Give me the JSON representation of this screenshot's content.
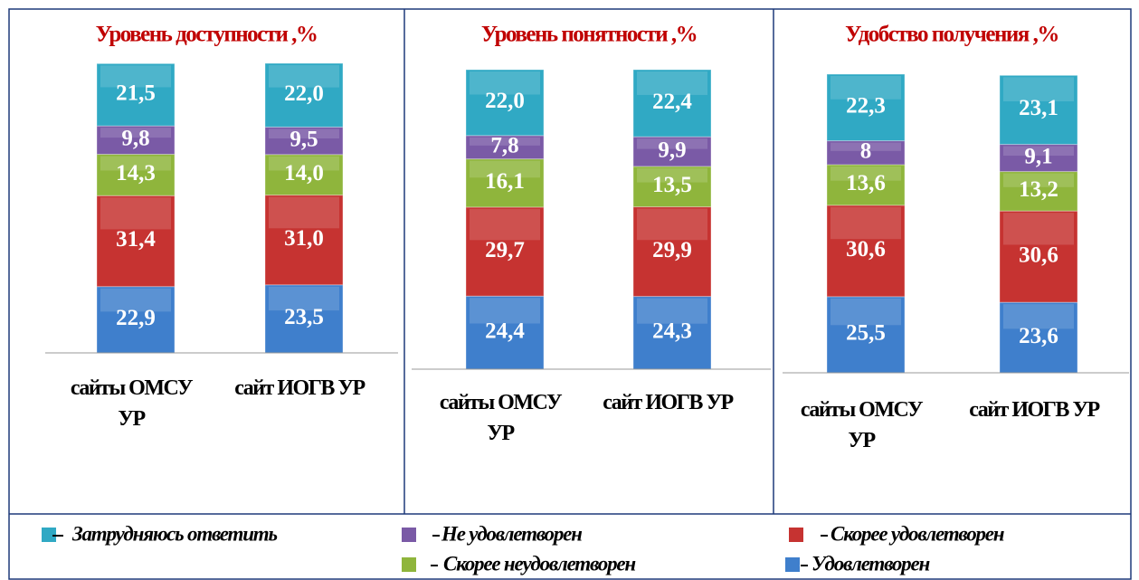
{
  "chart_data": [
    {
      "type": "stacked_bar",
      "title": "Уровень доступности ,%",
      "categories": [
        "сайты ОМСУ УР",
        "сайт ИОГВ УР"
      ],
      "ylim": [
        0,
        100
      ],
      "series": [
        {
          "name": "Удовлетворен",
          "color": "#3f7fcc",
          "values": [
            22.9,
            23.5
          ],
          "value_labels": [
            "22,9",
            "23,5"
          ]
        },
        {
          "name": "Скорее удовлетворен",
          "color": "#c63331",
          "values": [
            31.4,
            31.0
          ],
          "value_labels": [
            "31,4",
            "31,0"
          ]
        },
        {
          "name": "Скорее неудовлетворен",
          "color": "#8fb53c",
          "values": [
            14.3,
            14.0
          ],
          "value_labels": [
            "14,3",
            "14,0"
          ]
        },
        {
          "name": "Не удовлетворен",
          "color": "#7a5aa6",
          "values": [
            9.8,
            9.5
          ],
          "value_labels": [
            "9,8",
            "9,5"
          ]
        },
        {
          "name": "Затрудняюсь ответить",
          "color": "#30a9c4",
          "values": [
            21.5,
            22.0
          ],
          "value_labels": [
            "21,5",
            "22,0"
          ]
        }
      ]
    },
    {
      "type": "stacked_bar",
      "title": "Уровень понятности ,%",
      "categories": [
        "сайты ОМСУ УР",
        "сайт ИОГВ УР"
      ],
      "ylim": [
        0,
        100
      ],
      "series": [
        {
          "name": "Удовлетворен",
          "color": "#3f7fcc",
          "values": [
            24.4,
            24.3
          ],
          "value_labels": [
            "24,4",
            "24,3"
          ]
        },
        {
          "name": "Скорее удовлетворен",
          "color": "#c63331",
          "values": [
            29.7,
            29.9
          ],
          "value_labels": [
            "29,7",
            "29,9"
          ]
        },
        {
          "name": "Скорее неудовлетворен",
          "color": "#8fb53c",
          "values": [
            16.1,
            13.5
          ],
          "value_labels": [
            "16,1",
            "13,5"
          ]
        },
        {
          "name": "Не удовлетворен",
          "color": "#7a5aa6",
          "values": [
            7.8,
            9.9
          ],
          "value_labels": [
            "7,8",
            "9,9"
          ]
        },
        {
          "name": "Затрудняюсь ответить",
          "color": "#30a9c4",
          "values": [
            22.0,
            22.4
          ],
          "value_labels": [
            "22,0",
            "22,4"
          ]
        }
      ]
    },
    {
      "type": "stacked_bar",
      "title": "Удобство получения ,%",
      "categories": [
        "сайты ОМСУ УР",
        "сайт ИОГВ УР"
      ],
      "ylim": [
        0,
        100
      ],
      "series": [
        {
          "name": "Удовлетворен",
          "color": "#3f7fcc",
          "values": [
            25.5,
            23.6
          ],
          "value_labels": [
            "25,5",
            "23,6"
          ]
        },
        {
          "name": "Скорее удовлетворен",
          "color": "#c63331",
          "values": [
            30.6,
            30.6
          ],
          "value_labels": [
            "30,6",
            "30,6"
          ]
        },
        {
          "name": "Скорее неудовлетворен",
          "color": "#8fb53c",
          "values": [
            13.6,
            13.2
          ],
          "value_labels": [
            "13,6",
            "13,2"
          ]
        },
        {
          "name": "Не удовлетворен",
          "color": "#7a5aa6",
          "values": [
            8,
            9.1
          ],
          "value_labels": [
            "8",
            "9,1"
          ]
        },
        {
          "name": "Затрудняюсь ответить",
          "color": "#30a9c4",
          "values": [
            22.3,
            23.1
          ],
          "value_labels": [
            "22,3",
            "23,1"
          ]
        }
      ]
    }
  ]
}
